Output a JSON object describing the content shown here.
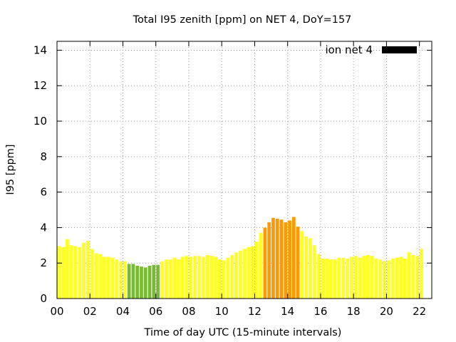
{
  "chart_data": {
    "type": "bar",
    "title": "Total I95 zenith [ppm] on NET 4, DoY=157",
    "xlabel": "Time of day UTC (15-minute intervals)",
    "ylabel": "I95 [ppm]",
    "xlim": [
      0,
      22.75
    ],
    "ylim": [
      0,
      14.5
    ],
    "x_ticks": [
      "00",
      "02",
      "04",
      "06",
      "08",
      "10",
      "12",
      "14",
      "16",
      "18",
      "20",
      "22"
    ],
    "y_ticks": [
      "0",
      "2",
      "4",
      "6",
      "8",
      "10",
      "12",
      "14"
    ],
    "grid": true,
    "legend_position": "top-right",
    "series": [
      {
        "name": "ion net 4",
        "legend_color": "#000000",
        "interval_hours": 0.25,
        "values": [
          2.95,
          2.9,
          3.35,
          3.0,
          2.95,
          2.9,
          3.15,
          3.25,
          2.8,
          2.55,
          2.5,
          2.35,
          2.35,
          2.3,
          2.2,
          2.1,
          2.1,
          1.95,
          1.95,
          1.85,
          1.8,
          1.75,
          1.85,
          1.9,
          1.9,
          2.1,
          2.2,
          2.2,
          2.3,
          2.2,
          2.35,
          2.4,
          2.35,
          2.4,
          2.4,
          2.35,
          2.45,
          2.4,
          2.35,
          2.2,
          2.15,
          2.3,
          2.45,
          2.6,
          2.7,
          2.8,
          2.9,
          2.95,
          3.2,
          3.7,
          4.0,
          4.3,
          4.55,
          4.5,
          4.45,
          4.3,
          4.4,
          4.6,
          4.05,
          3.8,
          3.5,
          3.4,
          3.0,
          2.5,
          2.25,
          2.25,
          2.2,
          2.2,
          2.3,
          2.3,
          2.25,
          2.35,
          2.4,
          2.3,
          2.4,
          2.45,
          2.4,
          2.25,
          2.2,
          2.1,
          2.15,
          2.25,
          2.3,
          2.35,
          2.25,
          2.6,
          2.45,
          2.4,
          2.8
        ]
      }
    ],
    "colors": {
      "low": "#77bb33",
      "normal": "#ffff22",
      "high": "#ff9900"
    }
  }
}
